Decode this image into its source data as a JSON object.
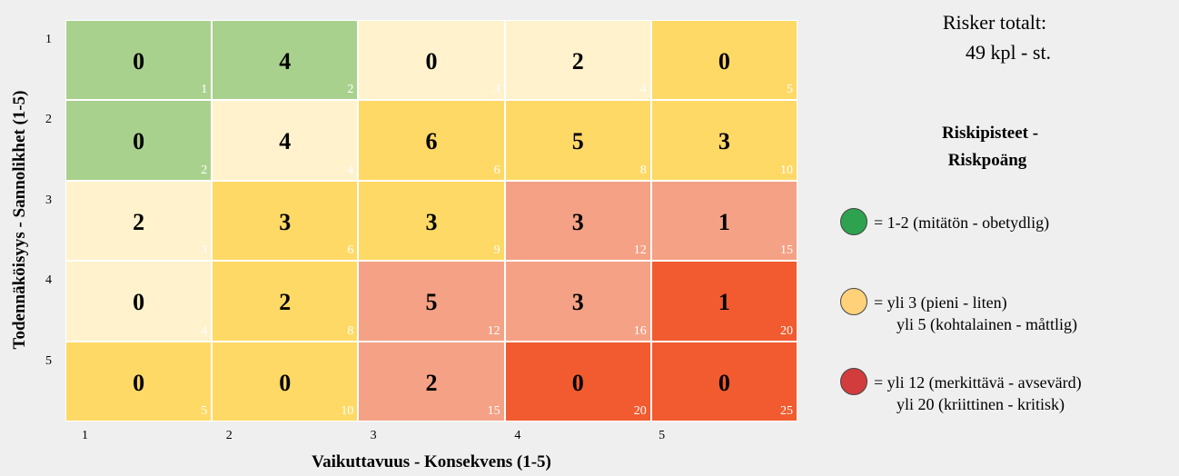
{
  "y_axis": {
    "title": "Todennäköisyys - Sannolikhet (1-5)",
    "labels": [
      1,
      2,
      3,
      4,
      5
    ]
  },
  "x_axis": {
    "title": "Vaikuttavuus - Konsekvens (1-5)",
    "labels": [
      1,
      2,
      3,
      4,
      5
    ]
  },
  "matrix": {
    "rows": [
      [
        {
          "count": 0,
          "score": 1,
          "color": "#a9d18e"
        },
        {
          "count": 4,
          "score": 2,
          "color": "#a9d18e"
        },
        {
          "count": 0,
          "score": 3,
          "color": "#fff2cc"
        },
        {
          "count": 2,
          "score": 4,
          "color": "#fff2cc"
        },
        {
          "count": 0,
          "score": 5,
          "color": "#ffd966"
        }
      ],
      [
        {
          "count": 0,
          "score": 2,
          "color": "#a9d18e"
        },
        {
          "count": 4,
          "score": 4,
          "color": "#fff2cc"
        },
        {
          "count": 6,
          "score": 6,
          "color": "#ffd966"
        },
        {
          "count": 5,
          "score": 8,
          "color": "#ffd966"
        },
        {
          "count": 3,
          "score": 10,
          "color": "#ffd966"
        }
      ],
      [
        {
          "count": 2,
          "score": 3,
          "color": "#fff2cc"
        },
        {
          "count": 3,
          "score": 6,
          "color": "#ffd966"
        },
        {
          "count": 3,
          "score": 9,
          "color": "#ffd966"
        },
        {
          "count": 3,
          "score": 12,
          "color": "#f4a185"
        },
        {
          "count": 1,
          "score": 15,
          "color": "#f4a185"
        }
      ],
      [
        {
          "count": 0,
          "score": 4,
          "color": "#fff2cc"
        },
        {
          "count": 2,
          "score": 8,
          "color": "#ffd966"
        },
        {
          "count": 5,
          "score": 12,
          "color": "#f4a185"
        },
        {
          "count": 3,
          "score": 16,
          "color": "#f4a185"
        },
        {
          "count": 1,
          "score": 20,
          "color": "#f15b2f"
        }
      ],
      [
        {
          "count": 0,
          "score": 5,
          "color": "#ffd966"
        },
        {
          "count": 0,
          "score": 10,
          "color": "#ffd966"
        },
        {
          "count": 2,
          "score": 15,
          "color": "#f4a185"
        },
        {
          "count": 0,
          "score": 20,
          "color": "#f15b2f"
        },
        {
          "count": 0,
          "score": 25,
          "color": "#f15b2f"
        }
      ]
    ]
  },
  "summary": {
    "label": "Risker totalt:",
    "total": "49 kpl - st."
  },
  "legend": {
    "title": [
      "Riskipisteet -",
      "Riskpoäng"
    ],
    "items": [
      {
        "color": "#2ea24f",
        "lines": [
          "= 1-2 (mitätön - obetydlig)"
        ]
      },
      {
        "color": "#ffd27a",
        "lines": [
          "= yli 3 (pieni - liten)",
          "yli 5 (kohtalainen - måttlig)"
        ]
      },
      {
        "color": "#d23c3c",
        "lines": [
          "= yli 12 (merkittävä - avsevärd)",
          "yli 20 (kriittinen - kritisk)"
        ]
      }
    ]
  }
}
